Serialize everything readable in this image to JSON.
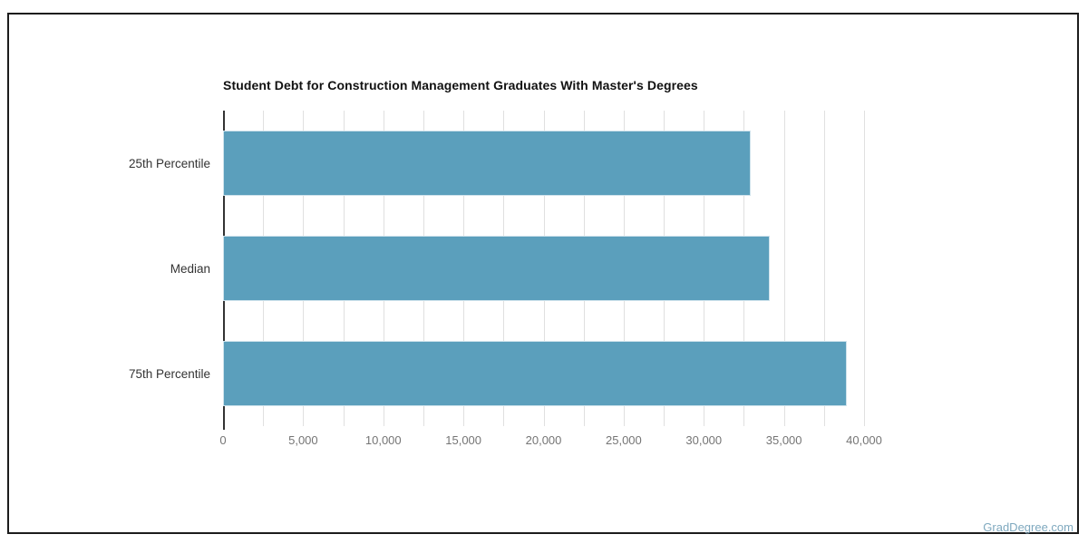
{
  "title": "Student Debt for Construction Management Graduates With Master's Degrees",
  "watermark": "GradDegree.com",
  "chart_data": {
    "type": "bar",
    "orientation": "horizontal",
    "title": "Student Debt for Construction Management Graduates With Master's Degrees",
    "categories": [
      "25th Percentile",
      "Median",
      "75th Percentile"
    ],
    "values": [
      32900,
      34100,
      38900
    ],
    "xlabel": "",
    "ylabel": "",
    "xlim": [
      0,
      40000
    ],
    "tick_step": 5000,
    "grid_step": 2500,
    "tick_labels": [
      "0",
      "5,000",
      "10,000",
      "15,000",
      "20,000",
      "25,000",
      "30,000",
      "35,000",
      "40,000"
    ],
    "grid": true,
    "legend": false,
    "colors": {
      "bar_fill": "#5B9FBC",
      "bar_border": "#CFE3EC",
      "gridline": "#E0E0E0",
      "axis_line": "#333333",
      "tick_label": "#757575",
      "category_label": "#333333",
      "title": "#111111",
      "watermark": "#7FA9BF",
      "frame_border": "#1C1C1C"
    }
  }
}
